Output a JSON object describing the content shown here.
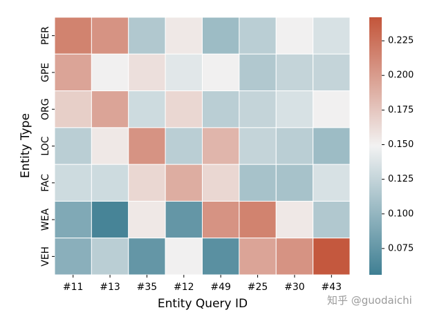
{
  "chart_data": {
    "type": "heatmap",
    "xlabel": "Entity Query ID",
    "ylabel": "Entity Type",
    "x_categories": [
      "#11",
      "#13",
      "#35",
      "#12",
      "#49",
      "#25",
      "#30",
      "#43"
    ],
    "y_categories": [
      "PER",
      "GPE",
      "ORG",
      "LOC",
      "FAC",
      "WEA",
      "VEH"
    ],
    "values": [
      [
        0.215,
        0.205,
        0.115,
        0.155,
        0.105,
        0.12,
        0.15,
        0.135
      ],
      [
        0.195,
        0.15,
        0.16,
        0.14,
        0.15,
        0.115,
        0.125,
        0.125
      ],
      [
        0.17,
        0.195,
        0.13,
        0.165,
        0.12,
        0.125,
        0.135,
        0.15
      ],
      [
        0.12,
        0.155,
        0.205,
        0.12,
        0.185,
        0.125,
        0.12,
        0.105
      ],
      [
        0.13,
        0.13,
        0.165,
        0.19,
        0.165,
        0.11,
        0.11,
        0.135
      ],
      [
        0.09,
        0.06,
        0.155,
        0.075,
        0.205,
        0.215,
        0.155,
        0.115
      ],
      [
        0.095,
        0.12,
        0.075,
        0.15,
        0.07,
        0.195,
        0.205,
        0.24
      ]
    ],
    "vmin": 0.056,
    "vmax": 0.242,
    "colorbar_ticks": [
      0.075,
      0.1,
      0.125,
      0.15,
      0.175,
      0.2,
      0.225
    ],
    "colorbar_tick_labels": [
      "0.075",
      "0.100",
      "0.125",
      "0.150",
      "0.175",
      "0.200",
      "0.225"
    ],
    "colormap_stops": [
      "#3f7f93",
      "#f2f2f2",
      "#c3553a"
    ]
  },
  "watermark": "知乎 @guodaichi"
}
